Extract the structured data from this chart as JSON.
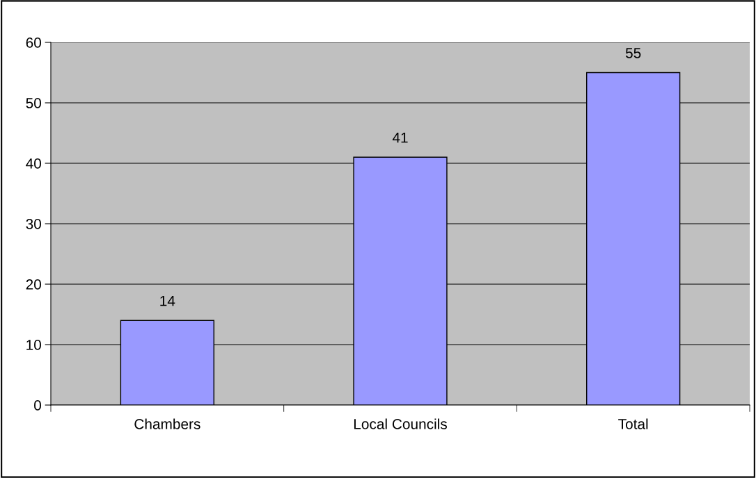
{
  "chart_data": {
    "type": "bar",
    "categories": [
      "Chambers",
      "Local Councils",
      "Total"
    ],
    "values": [
      14,
      41,
      55
    ],
    "color": "#9999ff",
    "ylim": [
      0,
      60
    ],
    "yticks": [
      0,
      10,
      20,
      30,
      40,
      50,
      60
    ],
    "grid": "y",
    "data_labels": true,
    "legend": false
  }
}
